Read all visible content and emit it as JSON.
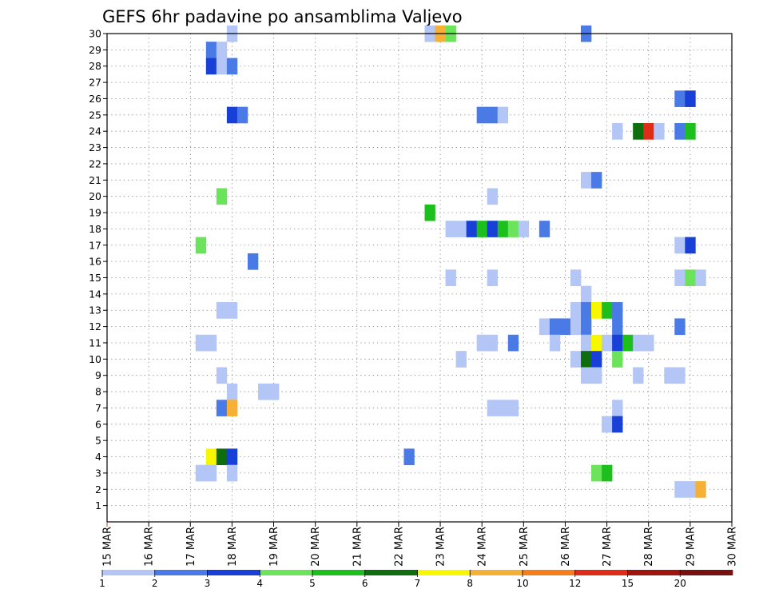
{
  "chart_data": {
    "type": "heatmap",
    "title": "GEFS 6hr padavine po ansamblima Valjevo",
    "y_labels": [
      "30",
      "29",
      "28",
      "27",
      "26",
      "25",
      "24",
      "23",
      "22",
      "21",
      "20",
      "19",
      "18",
      "17",
      "16",
      "15",
      "14",
      "13",
      "12",
      "11",
      "10",
      "9",
      "8",
      "7",
      "6",
      "5",
      "4",
      "3",
      "2",
      "1"
    ],
    "x_labels": [
      "15 MAR",
      "16 MAR",
      "17 MAR",
      "18 MAR",
      "19 MAR",
      "20 MAR",
      "21 MAR",
      "22 MAR",
      "23 MAR",
      "24 MAR",
      "25 MAR",
      "26 MAR",
      "27 MAR",
      "28 MAR",
      "29 MAR",
      "30 MAR"
    ],
    "x_range_days": [
      15,
      30
    ],
    "y_range_members": [
      0,
      30
    ],
    "bin_hours": 6,
    "legend_labels": [
      "1",
      "2",
      "3",
      "4",
      "5",
      "6",
      "7",
      "8",
      "10",
      "12",
      "15",
      "20"
    ],
    "legend_colors": [
      "#b4c6f5",
      "#4a7ae6",
      "#1940d6",
      "#6be35a",
      "#1cbf1c",
      "#0e6e0e",
      "#f7f700",
      "#f5b035",
      "#f57d1b",
      "#e02b17",
      "#a0140e",
      "#781212"
    ],
    "cells_note": "each cell: [member, day_offset_from_15_MAR, color_class_index]",
    "cells": [
      [
        30,
        3.0,
        0
      ],
      [
        30,
        7.75,
        0
      ],
      [
        30,
        8.0,
        7
      ],
      [
        30,
        8.25,
        3
      ],
      [
        30,
        11.5,
        1
      ],
      [
        29,
        2.5,
        1
      ],
      [
        29,
        2.75,
        0
      ],
      [
        28,
        2.5,
        2
      ],
      [
        28,
        2.75,
        0
      ],
      [
        28,
        3.0,
        1
      ],
      [
        26,
        13.75,
        1
      ],
      [
        26,
        14.0,
        2
      ],
      [
        25,
        3.0,
        2
      ],
      [
        25,
        3.25,
        1
      ],
      [
        25,
        9.0,
        1
      ],
      [
        25,
        9.25,
        1
      ],
      [
        25,
        9.5,
        0
      ],
      [
        24,
        12.25,
        0
      ],
      [
        24,
        12.75,
        5
      ],
      [
        24,
        13.0,
        9
      ],
      [
        24,
        13.25,
        0
      ],
      [
        24,
        13.75,
        1
      ],
      [
        24,
        14.0,
        4
      ],
      [
        21,
        11.5,
        0
      ],
      [
        21,
        11.75,
        1
      ],
      [
        20,
        2.75,
        3
      ],
      [
        20,
        9.25,
        0
      ],
      [
        19,
        7.75,
        4
      ],
      [
        18,
        8.25,
        0
      ],
      [
        18,
        8.5,
        0
      ],
      [
        18,
        8.75,
        2
      ],
      [
        18,
        9.0,
        4
      ],
      [
        18,
        9.25,
        2
      ],
      [
        18,
        9.5,
        4
      ],
      [
        18,
        9.75,
        3
      ],
      [
        18,
        10.0,
        0
      ],
      [
        18,
        10.5,
        1
      ],
      [
        17,
        2.25,
        3
      ],
      [
        17,
        13.75,
        0
      ],
      [
        17,
        14.0,
        2
      ],
      [
        16,
        3.5,
        1
      ],
      [
        15,
        8.25,
        0
      ],
      [
        15,
        9.25,
        0
      ],
      [
        15,
        11.25,
        0
      ],
      [
        15,
        13.75,
        0
      ],
      [
        15,
        14.0,
        3
      ],
      [
        15,
        14.25,
        0
      ],
      [
        14,
        11.5,
        0
      ],
      [
        13,
        2.75,
        0
      ],
      [
        13,
        3.0,
        0
      ],
      [
        13,
        11.25,
        0
      ],
      [
        13,
        11.5,
        1
      ],
      [
        13,
        11.75,
        6
      ],
      [
        13,
        12.0,
        4
      ],
      [
        13,
        12.25,
        1
      ],
      [
        12,
        10.5,
        0
      ],
      [
        12,
        10.75,
        1
      ],
      [
        12,
        11.0,
        1
      ],
      [
        12,
        11.25,
        0
      ],
      [
        12,
        11.5,
        1
      ],
      [
        12,
        12.25,
        1
      ],
      [
        12,
        13.75,
        1
      ],
      [
        11,
        2.25,
        0
      ],
      [
        11,
        2.5,
        0
      ],
      [
        11,
        9.0,
        0
      ],
      [
        11,
        9.25,
        0
      ],
      [
        11,
        9.75,
        1
      ],
      [
        11,
        10.75,
        0
      ],
      [
        11,
        11.5,
        0
      ],
      [
        11,
        11.75,
        6
      ],
      [
        11,
        12.0,
        0
      ],
      [
        11,
        12.25,
        2
      ],
      [
        11,
        12.5,
        4
      ],
      [
        11,
        12.75,
        0
      ],
      [
        11,
        13.0,
        0
      ],
      [
        10,
        8.5,
        0
      ],
      [
        10,
        11.25,
        0
      ],
      [
        10,
        11.5,
        5
      ],
      [
        10,
        11.75,
        2
      ],
      [
        10,
        12.25,
        3
      ],
      [
        9,
        2.75,
        0
      ],
      [
        9,
        11.5,
        0
      ],
      [
        9,
        11.75,
        0
      ],
      [
        9,
        12.75,
        0
      ],
      [
        9,
        13.5,
        0
      ],
      [
        9,
        13.75,
        0
      ],
      [
        8,
        3.0,
        0
      ],
      [
        8,
        3.75,
        0
      ],
      [
        8,
        4.0,
        0
      ],
      [
        7,
        2.75,
        1
      ],
      [
        7,
        3.0,
        7
      ],
      [
        7,
        9.25,
        0
      ],
      [
        7,
        9.5,
        0
      ],
      [
        7,
        9.75,
        0
      ],
      [
        7,
        12.25,
        0
      ],
      [
        6,
        12.0,
        0
      ],
      [
        6,
        12.25,
        2
      ],
      [
        4,
        2.5,
        6
      ],
      [
        4,
        2.75,
        5
      ],
      [
        4,
        3.0,
        2
      ],
      [
        4,
        7.25,
        1
      ],
      [
        3,
        2.25,
        0
      ],
      [
        3,
        2.5,
        0
      ],
      [
        3,
        3.0,
        0
      ],
      [
        3,
        11.75,
        3
      ],
      [
        3,
        12.0,
        4
      ],
      [
        2,
        13.75,
        0
      ],
      [
        2,
        14.0,
        0
      ],
      [
        2,
        14.25,
        7
      ]
    ]
  }
}
